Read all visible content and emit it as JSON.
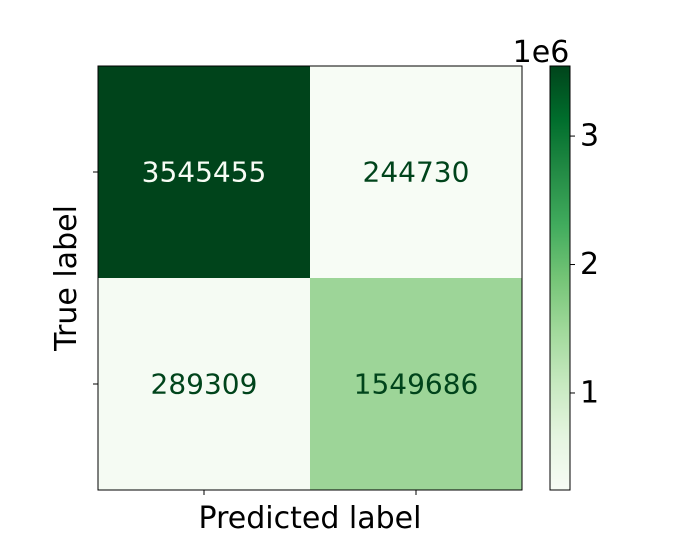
{
  "chart_data": {
    "type": "heatmap",
    "xlabel": "Predicted label",
    "ylabel": "True label",
    "x_categories": [
      "",
      ""
    ],
    "y_categories": [
      "",
      ""
    ],
    "matrix": [
      [
        3545455,
        244730
      ],
      [
        289309,
        1549686
      ]
    ],
    "colormap": "Greens",
    "colorbar": {
      "range": [
        244730,
        3545455
      ],
      "ticks": [
        1000000,
        2000000,
        3000000
      ],
      "tick_labels": [
        "1",
        "2",
        "3"
      ],
      "exponent_label": "1e6"
    },
    "colors": {
      "cell_3545455": "#00441b",
      "cell_244730": "#f7fcf5",
      "cell_289309": "#f5fbf3",
      "cell_1549686": "#9dd598",
      "text_on_dark": "#f7fcf5",
      "text_on_light": "#00441b"
    }
  }
}
